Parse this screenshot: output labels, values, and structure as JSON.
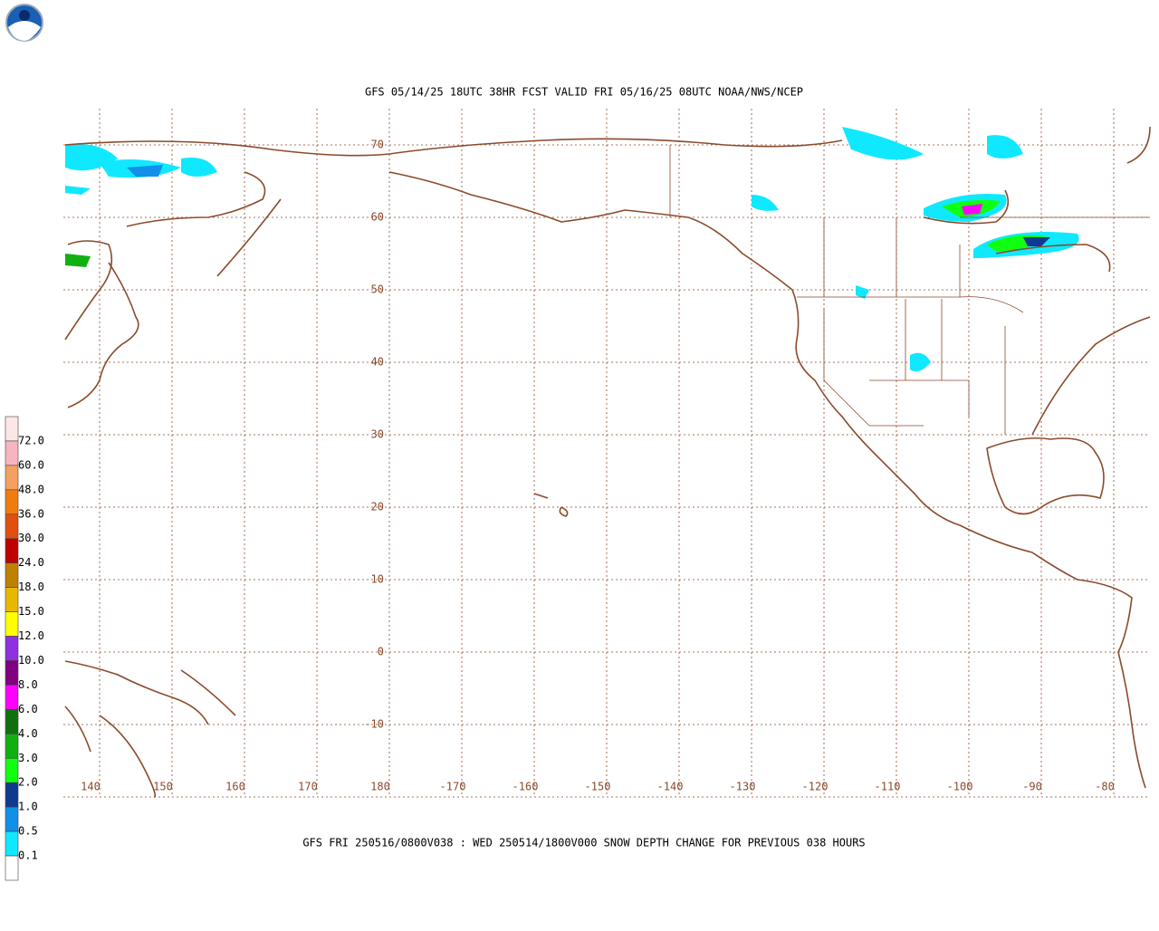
{
  "header": {
    "title": "GFS 05/14/25 18UTC 38HR FCST VALID FRI 05/16/25 08UTC NOAA/NWS/NCEP"
  },
  "map": {
    "lat_labels": [
      "70",
      "60",
      "50",
      "40",
      "30",
      "20",
      "10",
      "0",
      "-10"
    ],
    "lon_labels": [
      "140",
      "150",
      "160",
      "170",
      "180",
      "-170",
      "-160",
      "-150",
      "-140",
      "-130",
      "-120",
      "-110",
      "-100",
      "-90",
      "-80"
    ]
  },
  "legend": {
    "labels": [
      "72.0",
      "60.0",
      "48.0",
      "36.0",
      "30.0",
      "24.0",
      "18.0",
      "15.0",
      "12.0",
      "10.0",
      "8.0",
      "6.0",
      "4.0",
      "3.0",
      "2.0",
      "1.0",
      "0.5",
      "0.1"
    ],
    "colors": [
      "#fde6e6",
      "#f8b4c0",
      "#f4a060",
      "#f07c10",
      "#e05010",
      "#c00000",
      "#c08000",
      "#e8b800",
      "#ffff00",
      "#9030e0",
      "#800080",
      "#ff00ff",
      "#107010",
      "#10b010",
      "#10ff10",
      "#103a90",
      "#1090e8",
      "#10e8ff",
      "#ffffff"
    ]
  },
  "footer": {
    "text": "GFS FRI 250516/0800V038 : WED 250514/1800V000 SNOW DEPTH CHANGE FOR PREVIOUS 038 HOURS"
  }
}
